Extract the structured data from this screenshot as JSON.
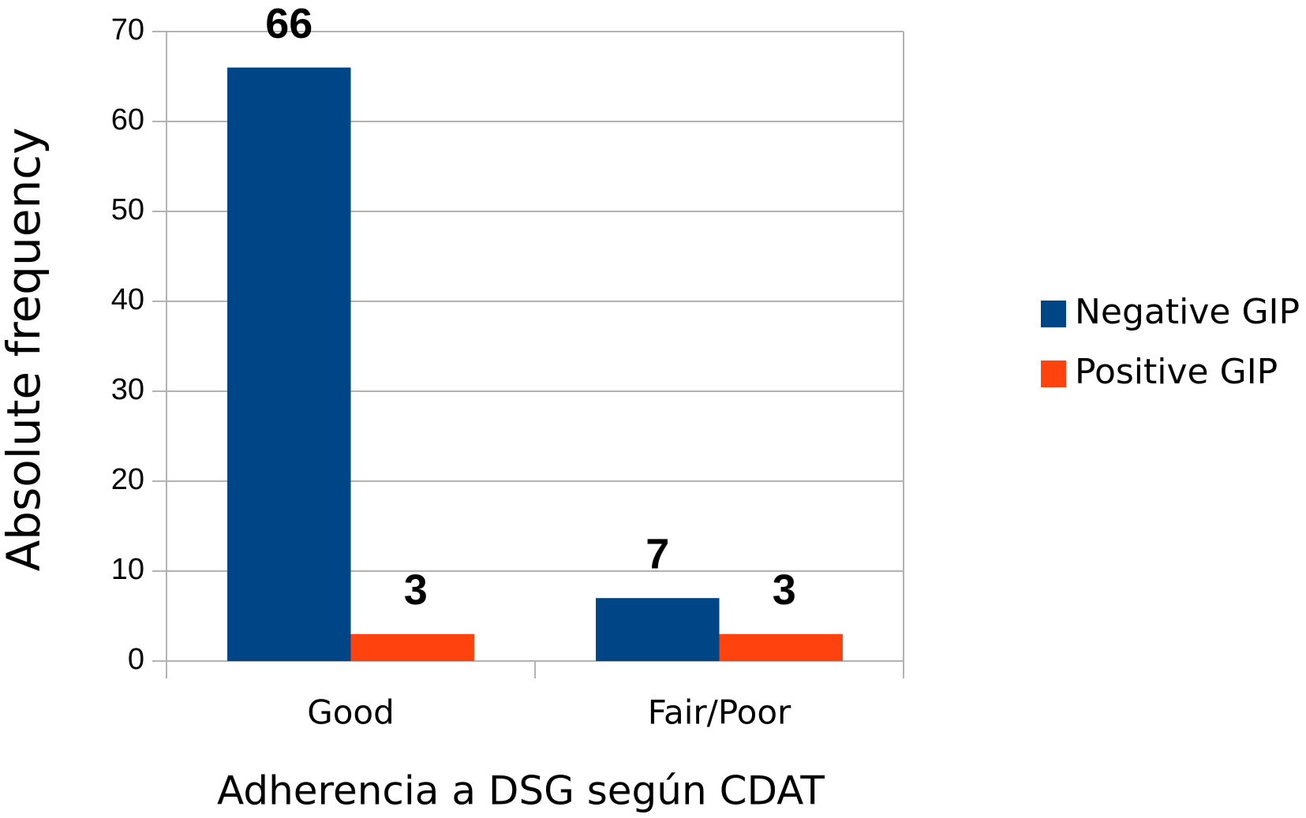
{
  "chart_data": {
    "type": "bar",
    "xlabel": "Adherencia a DSG según CDAT",
    "ylabel": "Absolute frequency",
    "categories": [
      "Good",
      "Fair/Poor"
    ],
    "series": [
      {
        "name": "Negative GIP",
        "color": "#004586",
        "values": [
          66,
          7
        ]
      },
      {
        "name": "Positive GIP",
        "color": "#ff420e",
        "values": [
          3,
          3
        ]
      }
    ],
    "ylim": [
      0,
      70
    ],
    "yticks": [
      0,
      10,
      20,
      30,
      40,
      50,
      60,
      70
    ],
    "grid": true,
    "legend": "right"
  }
}
